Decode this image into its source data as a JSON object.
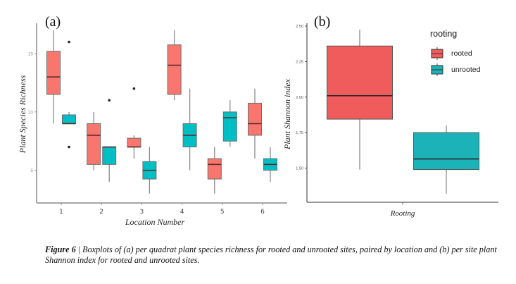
{
  "chart_data": [
    {
      "type": "box",
      "panel_label": "(a)",
      "xlabel": "Location Number",
      "ylabel": "Plant Species Richness",
      "categories": [
        "1",
        "2",
        "3",
        "4",
        "5",
        "6"
      ],
      "ylim": [
        2.2,
        17.6
      ],
      "yticks": [
        5,
        10,
        15
      ],
      "ytick_labels": [
        "5",
        "10",
        "15"
      ],
      "grid": false,
      "series": [
        {
          "name": "rooted",
          "color": "#F8766D",
          "boxes": [
            {
              "whislo": 9,
              "q1": 11.5,
              "med": 13,
              "q3": 15.2,
              "whishi": 17,
              "fliers": []
            },
            {
              "whislo": 5,
              "q1": 5.5,
              "med": 8,
              "q3": 9,
              "whishi": 10,
              "fliers": []
            },
            {
              "whislo": 6,
              "q1": 7,
              "med": 7,
              "q3": 7.75,
              "whishi": 8,
              "fliers": [
                12
              ]
            },
            {
              "whislo": 11,
              "q1": 11.5,
              "med": 14,
              "q3": 15.75,
              "whishi": 17,
              "fliers": []
            },
            {
              "whislo": 3,
              "q1": 4.25,
              "med": 5.5,
              "q3": 6,
              "whishi": 7,
              "fliers": []
            },
            {
              "whislo": 6,
              "q1": 8,
              "med": 9,
              "q3": 10.75,
              "whishi": 12,
              "fliers": []
            }
          ]
        },
        {
          "name": "unrooted",
          "color": "#00BFC4",
          "boxes": [
            {
              "whislo": 9,
              "q1": 9,
              "med": 9,
              "q3": 9.75,
              "whishi": 10,
              "fliers": [
                16,
                7
              ]
            },
            {
              "whislo": 4,
              "q1": 5.5,
              "med": 7,
              "q3": 7,
              "whishi": 7,
              "fliers": [
                11
              ]
            },
            {
              "whislo": 3,
              "q1": 4.25,
              "med": 5,
              "q3": 5.75,
              "whishi": 7,
              "fliers": []
            },
            {
              "whislo": 5,
              "q1": 7,
              "med": 8,
              "q3": 9,
              "whishi": 12,
              "fliers": []
            },
            {
              "whislo": 7,
              "q1": 7.5,
              "med": 9.5,
              "q3": 10,
              "whishi": 11,
              "fliers": []
            },
            {
              "whislo": 4,
              "q1": 5,
              "med": 5.5,
              "q3": 6,
              "whishi": 7,
              "fliers": []
            }
          ]
        }
      ]
    },
    {
      "type": "box",
      "panel_label": "(b)",
      "xlabel": "Rooting",
      "ylabel": "Plant Shannon index",
      "categories": [
        "rooted",
        "unrooted"
      ],
      "ylim": [
        1.26,
        2.52
      ],
      "yticks": [
        1.5,
        1.75,
        2.0,
        2.25,
        2.5
      ],
      "ytick_labels": [
        "1.50",
        "1.75",
        "2.00",
        "2.25",
        "2.50"
      ],
      "grid": false,
      "legend": {
        "title": "rooting",
        "placement": "top-right",
        "entries": [
          "rooted",
          "unrooted"
        ]
      },
      "series": [
        {
          "name": "rooted",
          "color": "#F05B5B",
          "box": {
            "whislo": 1.49,
            "q1": 1.845,
            "med": 2.01,
            "q3": 2.36,
            "whishi": 2.475
          }
        },
        {
          "name": "unrooted",
          "color": "#1BB3B7",
          "box": {
            "whislo": 1.32,
            "q1": 1.49,
            "med": 1.565,
            "q3": 1.75,
            "whishi": 1.8
          }
        }
      ]
    }
  ],
  "caption": {
    "label": "Figure 6",
    "separator": " | ",
    "text": "Boxplots of (a) per quadrat plant species richness for rooted and unrooted sites, paired by location and (b) per site plant Shannon index for rooted and unrooted sites."
  }
}
